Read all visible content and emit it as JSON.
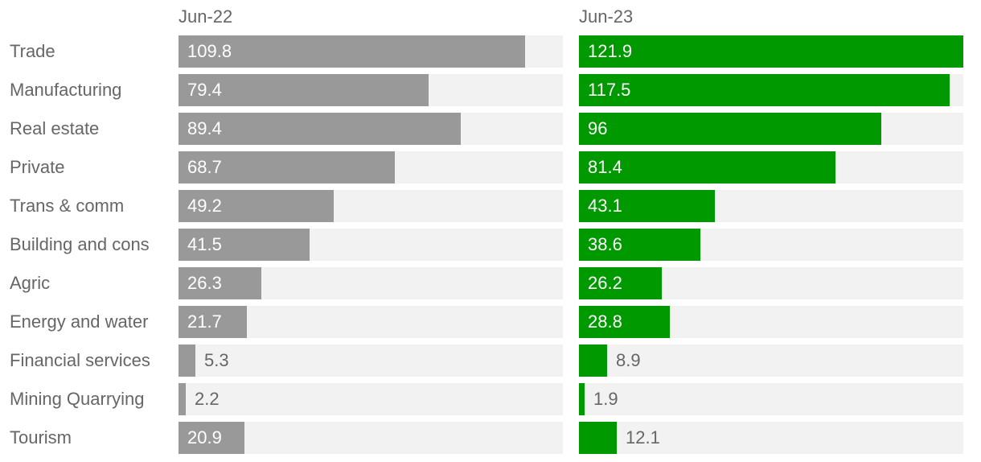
{
  "chart_data": {
    "type": "bar",
    "orientation": "horizontal",
    "categories": [
      "Trade",
      "Manufacturing",
      "Real estate",
      "Private",
      "Trans & comm",
      "Building and cons",
      "Agric",
      "Energy and water",
      "Financial services",
      "Mining Quarrying",
      "Tourism"
    ],
    "series": [
      {
        "name": "Jun-22",
        "values": [
          109.8,
          79.4,
          89.4,
          68.7,
          49.2,
          41.5,
          26.3,
          21.7,
          5.3,
          2.2,
          20.9
        ],
        "color": "#999999"
      },
      {
        "name": "Jun-23",
        "values": [
          121.9,
          117.5,
          96,
          81.4,
          43.1,
          38.6,
          26.2,
          28.8,
          8.9,
          1.9,
          12.1
        ],
        "color": "#009900"
      }
    ],
    "xlim": [
      0,
      121.9
    ],
    "label_color_inside": "#ffffff",
    "label_color_outside": "#666666",
    "track_color": "#f2f2f2"
  }
}
